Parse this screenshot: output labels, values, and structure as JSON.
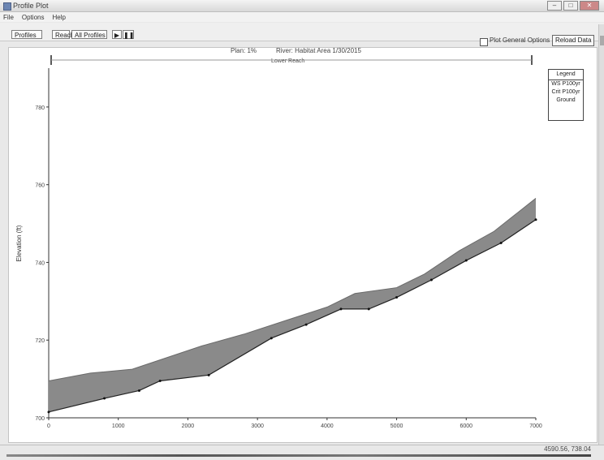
{
  "window": {
    "title": "Profile Plot",
    "minimize": "–",
    "maximize": "□",
    "close": "✕"
  },
  "menu": [
    "File",
    "Options",
    "Help"
  ],
  "toolbar": {
    "profiles_label": "Profiles",
    "reach_label": "Reach",
    "all_profiles_label": "All Profiles",
    "play_label": "▶",
    "pause_label": "❚❚",
    "plot_options_label": "Plot General Options",
    "reload_label": "Reload Data"
  },
  "header": {
    "plan_label": "Plan: 1%",
    "river_label": "River: Habitat Area   1/30/2015",
    "reach_label": "Lower Reach"
  },
  "legend": {
    "title": "Legend",
    "items": [
      "WS P100yr",
      "Crit P100yr",
      "Ground"
    ]
  },
  "status": {
    "coords": "4590.56, 738.04"
  },
  "chart_data": {
    "type": "area",
    "xlabel": "",
    "ylabel": "Elevation (ft)",
    "xlim": [
      0,
      7000
    ],
    "ylim": [
      700,
      790
    ],
    "x_ticks": [
      "0",
      "1000",
      "2000",
      "3000",
      "4000",
      "5000",
      "6000",
      "7000"
    ],
    "y_ticks": [
      "700",
      "720",
      "740",
      "760",
      "780"
    ],
    "series": [
      {
        "name": "WS P100yr",
        "color": "#8a8a8a",
        "x": [
          0,
          600,
          1200,
          1700,
          2200,
          2800,
          3400,
          4000,
          4400,
          5000,
          5400,
          5900,
          6400,
          7000
        ],
        "y": [
          709.5,
          711.5,
          712.5,
          715.5,
          718.5,
          721.5,
          725.0,
          728.5,
          732.0,
          733.5,
          737.0,
          743.0,
          748.0,
          756.5
        ]
      },
      {
        "name": "Ground",
        "color": "#333333",
        "x": [
          0,
          800,
          1300,
          1600,
          2300,
          3200,
          3700,
          4200,
          4600,
          5000,
          5500,
          6000,
          6500,
          7000
        ],
        "y": [
          701.5,
          705.0,
          707.0,
          709.5,
          711.0,
          720.5,
          724.0,
          728.0,
          728.0,
          731.0,
          735.5,
          740.5,
          745.0,
          751.0
        ]
      }
    ]
  }
}
